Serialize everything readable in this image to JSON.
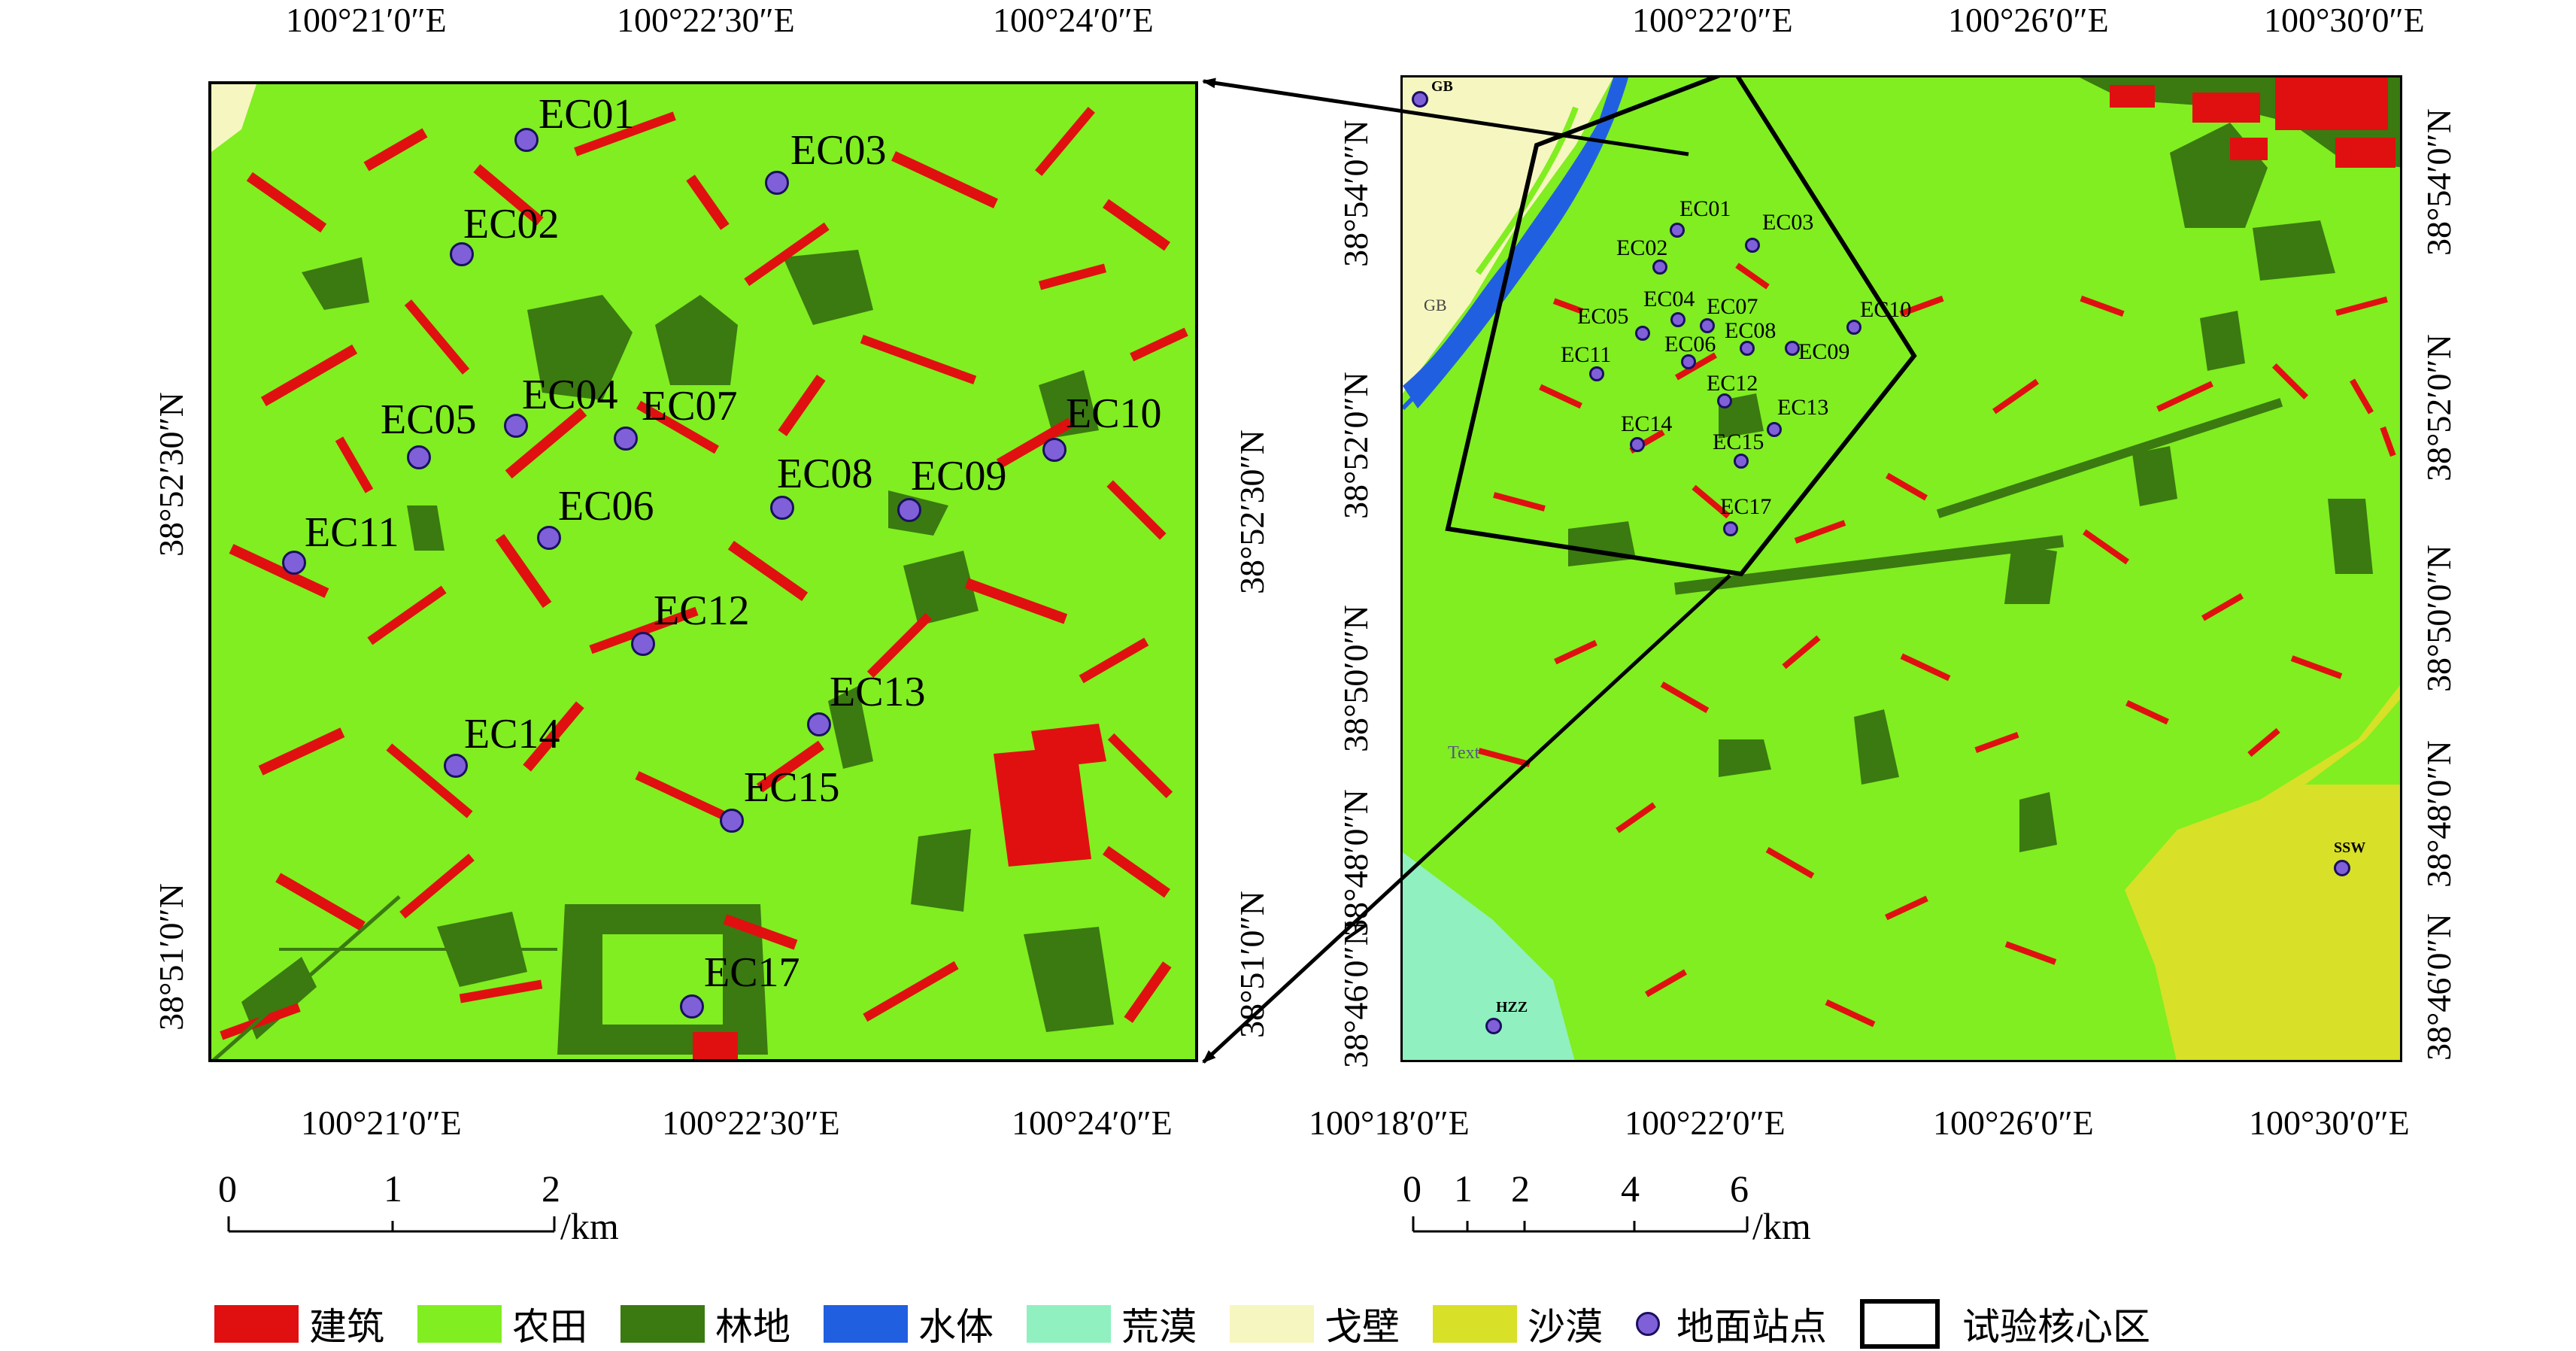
{
  "left_map": {
    "top_lon_labels": [
      "100°21′0″E",
      "100°22′30″E",
      "100°24′0″E"
    ],
    "bottom_lon_labels": [
      "100°21′0″E",
      "100°22′30″E",
      "100°24′0″E"
    ],
    "left_lat_labels": [
      "38°52′30″N",
      "38°51′0″N"
    ],
    "right_lat_labels": [
      "38°52′30″N",
      "38°51′0″N"
    ],
    "stations": [
      {
        "id": "EC01"
      },
      {
        "id": "EC02"
      },
      {
        "id": "EC03"
      },
      {
        "id": "EC04"
      },
      {
        "id": "EC05"
      },
      {
        "id": "EC06"
      },
      {
        "id": "EC07"
      },
      {
        "id": "EC08"
      },
      {
        "id": "EC09"
      },
      {
        "id": "EC10"
      },
      {
        "id": "EC11"
      },
      {
        "id": "EC12"
      },
      {
        "id": "EC13"
      },
      {
        "id": "EC14"
      },
      {
        "id": "EC15"
      },
      {
        "id": "EC17"
      }
    ],
    "scale_ticks": [
      "0",
      "1",
      "2"
    ],
    "scale_unit": "/km"
  },
  "right_map": {
    "top_lon_labels": [
      "100°22′0″E",
      "100°26′0″E",
      "100°30′0″E"
    ],
    "bottom_lon_labels": [
      "100°18′0″E",
      "100°22′0″E",
      "100°26′0″E",
      "100°30′0″E"
    ],
    "left_lat_labels": [
      "38°54′0″N",
      "38°52′0″N",
      "38°50′0″N",
      "38°48′0″N",
      "38°46′0″N"
    ],
    "right_lat_labels": [
      "38°54′0″N",
      "38°52′0″N",
      "38°50′0″N",
      "38°48′0″N",
      "38°46′0″N"
    ],
    "extra_stations": [
      {
        "id": "GB"
      },
      {
        "id": "SSW"
      },
      {
        "id": "HZZ"
      }
    ],
    "stations": [
      {
        "id": "EC01"
      },
      {
        "id": "EC02"
      },
      {
        "id": "EC03"
      },
      {
        "id": "EC04"
      },
      {
        "id": "EC05"
      },
      {
        "id": "EC06"
      },
      {
        "id": "EC07"
      },
      {
        "id": "EC08"
      },
      {
        "id": "EC09"
      },
      {
        "id": "EC10"
      },
      {
        "id": "EC11"
      },
      {
        "id": "EC12"
      },
      {
        "id": "EC13"
      },
      {
        "id": "EC14"
      },
      {
        "id": "EC15"
      },
      {
        "id": "EC17"
      }
    ],
    "scale_ticks": [
      "0",
      "1",
      "2",
      "4",
      "6"
    ],
    "scale_unit": "/km"
  },
  "legend": [
    {
      "label": "建筑",
      "color": "#e01010"
    },
    {
      "label": "农田",
      "color": "#80ee20"
    },
    {
      "label": "林地",
      "color": "#3a7a10"
    },
    {
      "label": "水体",
      "color": "#2060e0"
    },
    {
      "label": "荒漠",
      "color": "#90f0c0"
    },
    {
      "label": "戈壁",
      "color": "#f6f6c0"
    },
    {
      "label": "沙漠",
      "color": "#d8e028"
    },
    {
      "label": "地面站点",
      "color": "#8060d8"
    },
    {
      "label": "试验核心区",
      "color": "#000000"
    }
  ],
  "colors": {
    "farmland": "#80ee20",
    "building": "#e01010",
    "forest": "#3a7a10",
    "water": "#2060e0",
    "desert_light": "#90f0c0",
    "gobi": "#f6f6c0",
    "sand": "#d8e028",
    "station": "#8060d8"
  }
}
